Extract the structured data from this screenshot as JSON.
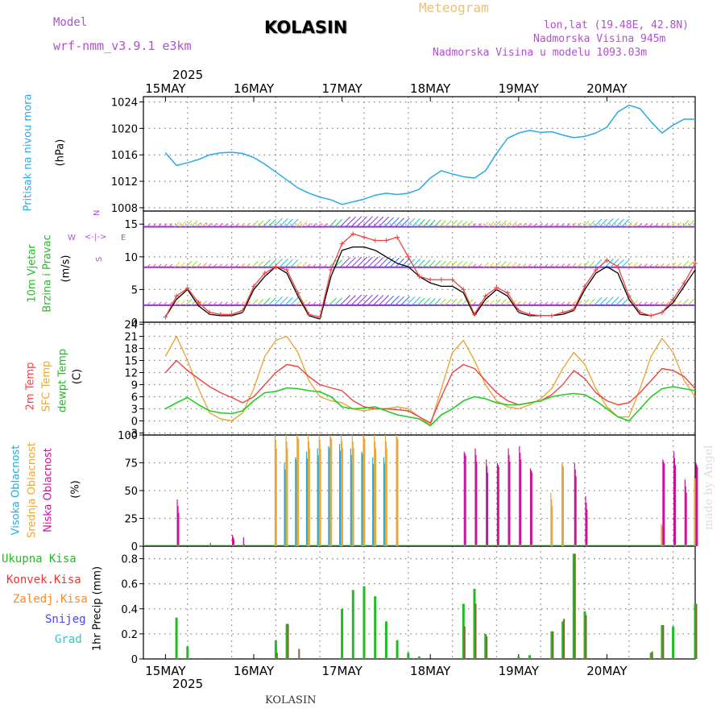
{
  "header": {
    "model_label": "Model",
    "model_name": "wrf-nmm_v3.9.1 e3km",
    "title": "KOLASIN",
    "meteogram": "Meteogram",
    "lonlat": "lon,lat (19.48E, 42.8N)",
    "elevation": "Nadmorska Visina 945m",
    "model_elevation": "Nadmorska Visina u modelu 1093.03m",
    "year": "2025",
    "footer_station": "KOLASIN",
    "watermark": "made by Angel"
  },
  "colors": {
    "pressure": "#2aa8e8",
    "temp2m": "#ee4444",
    "sfc": "#e8a838",
    "dewpt": "#22cc22",
    "high_cloud": "#22aadd",
    "mid_cloud": "#e8a838",
    "low_cloud": "#cc1199",
    "precip_total": "#22bb22",
    "precip_conv": "#ee3333",
    "freezing": "#ff8822",
    "snow": "#4444ff",
    "hail": "#22cccc",
    "grid": "#888888"
  },
  "chart_data": [
    {
      "type": "line",
      "title": "Pritisak na nivou mora",
      "ylabel": "(hPa)",
      "ylim": [
        1007.5,
        1024.8
      ],
      "yticks": [
        "1008",
        "1012",
        "1016",
        "1020",
        "1024"
      ],
      "x_hours": [
        0,
        3,
        6,
        9,
        12,
        15,
        18,
        21,
        24,
        27,
        30,
        33,
        36,
        39,
        42,
        45,
        48,
        51,
        54,
        57,
        60,
        63,
        66,
        69,
        72,
        75,
        78,
        81,
        84,
        87,
        90,
        93,
        96,
        99,
        102,
        105,
        108,
        111,
        114,
        117,
        120,
        123,
        126,
        129,
        132,
        135,
        138,
        141,
        144
      ],
      "series": [
        {
          "name": "Pritisak",
          "values": [
            1016.3,
            1014.4,
            1014.8,
            1015.3,
            1016.0,
            1016.3,
            1016.4,
            1016.2,
            1015.6,
            1014.6,
            1013.4,
            1012.2,
            1011.0,
            1010.2,
            1009.6,
            1009.2,
            1008.5,
            1008.9,
            1009.3,
            1009.9,
            1010.2,
            1010.0,
            1010.2,
            1010.8,
            1012.5,
            1013.6,
            1013.1,
            1012.7,
            1012.5,
            1013.6,
            1016.2,
            1018.5,
            1019.3,
            1019.7,
            1019.4,
            1019.5,
            1019.0,
            1018.6,
            1018.8,
            1019.3,
            1020.2,
            1022.5,
            1023.5,
            1023.0,
            1021.0,
            1019.3,
            1020.5,
            1021.4,
            1021.4
          ]
        }
      ]
    },
    {
      "type": "line",
      "title": "10m Vjetar Brzina i Pravac",
      "ylabel": "(m/s)",
      "ylim": [
        0,
        17
      ],
      "yticks": [
        "0",
        "5",
        "10",
        "15"
      ],
      "compass": [
        "N",
        "<",
        "-",
        "|",
        "-",
        ">",
        "E",
        "W",
        "S"
      ],
      "x_hours": [
        0,
        3,
        6,
        9,
        12,
        15,
        18,
        21,
        24,
        27,
        30,
        33,
        36,
        39,
        42,
        45,
        48,
        51,
        54,
        57,
        60,
        63,
        66,
        69,
        72,
        75,
        78,
        81,
        84,
        87,
        90,
        93,
        96,
        99,
        102,
        105,
        108,
        111,
        114,
        117,
        120,
        123,
        126,
        129,
        132,
        135,
        138,
        141,
        144
      ],
      "series": [
        {
          "name": "Brzina",
          "values": [
            0.8,
            3.5,
            5.0,
            2.5,
            1.2,
            1.0,
            1.0,
            1.5,
            5.0,
            7.0,
            8.5,
            7.5,
            4.0,
            1.0,
            0.5,
            7.0,
            11.0,
            11.5,
            11.5,
            11.0,
            10.0,
            9.0,
            8.5,
            7.0,
            6.0,
            5.5,
            5.5,
            4.5,
            1.0,
            3.5,
            5.0,
            4.0,
            1.5,
            1.0,
            1.0,
            1.0,
            1.2,
            1.8,
            5.0,
            7.5,
            8.5,
            7.5,
            3.5,
            1.2,
            1.0,
            1.5,
            3.0,
            5.5,
            8.0
          ]
        },
        {
          "name": "Udari",
          "values": [
            0.8,
            4.0,
            5.2,
            3.0,
            1.5,
            1.2,
            1.2,
            1.8,
            5.5,
            7.5,
            8.5,
            8.0,
            4.5,
            1.2,
            0.8,
            8.0,
            12.0,
            13.5,
            13.0,
            12.5,
            12.5,
            13.0,
            10.0,
            7.0,
            6.5,
            6.5,
            6.5,
            5.0,
            1.2,
            4.0,
            5.3,
            4.5,
            1.8,
            1.2,
            1.0,
            1.0,
            1.5,
            2.0,
            5.5,
            8.0,
            9.5,
            8.5,
            4.0,
            1.5,
            1.0,
            1.5,
            3.5,
            6.0,
            9.0
          ]
        }
      ]
    },
    {
      "type": "line",
      "title": "2m Temp / SFC Temp / dewpt Temp",
      "ylabel": "(C)",
      "ylim": [
        -3.5,
        24.5
      ],
      "yticks": [
        "-3",
        "0",
        "3",
        "6",
        "9",
        "12",
        "15",
        "18",
        "21",
        "24"
      ],
      "x_hours": [
        0,
        3,
        6,
        9,
        12,
        15,
        18,
        21,
        24,
        27,
        30,
        33,
        36,
        39,
        42,
        45,
        48,
        51,
        54,
        57,
        60,
        63,
        66,
        69,
        72,
        75,
        78,
        81,
        84,
        87,
        90,
        93,
        96,
        99,
        102,
        105,
        108,
        111,
        114,
        117,
        120,
        123,
        126,
        129,
        132,
        135,
        138,
        141,
        144
      ],
      "series": [
        {
          "name": "2m Temp",
          "values": [
            12.0,
            15.0,
            12.5,
            10.5,
            8.5,
            7.0,
            5.8,
            4.5,
            6.0,
            9.0,
            12.0,
            14.0,
            13.5,
            11.0,
            9.0,
            8.2,
            7.5,
            5.0,
            3.5,
            3.0,
            3.0,
            2.8,
            2.5,
            1.0,
            -0.5,
            6.0,
            12.0,
            14.0,
            13.0,
            10.0,
            7.0,
            5.0,
            4.0,
            4.5,
            5.0,
            6.5,
            9.0,
            12.5,
            10.5,
            7.0,
            5.0,
            4.0,
            4.5,
            7.0,
            10.0,
            13.0,
            12.5,
            11.0,
            8.0
          ]
        },
        {
          "name": "SFC Temp",
          "values": [
            16.0,
            21.0,
            15.0,
            8.0,
            2.0,
            0.5,
            0.0,
            2.0,
            8.0,
            16.0,
            20.0,
            21.0,
            17.0,
            10.0,
            6.0,
            5.0,
            4.5,
            3.0,
            2.5,
            3.0,
            3.0,
            3.5,
            3.0,
            1.0,
            -1.0,
            8.0,
            17.0,
            20.0,
            15.0,
            9.0,
            5.0,
            3.5,
            3.0,
            4.0,
            5.5,
            8.0,
            13.0,
            17.0,
            14.0,
            8.0,
            3.5,
            1.0,
            1.0,
            8.0,
            16.0,
            20.5,
            17.0,
            10.0,
            6.0
          ]
        },
        {
          "name": "dewpt Temp",
          "values": [
            3.0,
            4.5,
            5.8,
            4.0,
            2.5,
            2.0,
            1.8,
            2.5,
            5.0,
            7.0,
            7.3,
            8.2,
            8.0,
            7.5,
            7.2,
            6.0,
            3.5,
            3.0,
            3.2,
            3.5,
            2.5,
            1.5,
            1.0,
            0.5,
            -1.2,
            1.5,
            3.0,
            5.0,
            6.0,
            5.5,
            4.5,
            4.0,
            4.0,
            4.5,
            5.0,
            6.0,
            6.5,
            6.8,
            6.5,
            5.0,
            3.0,
            1.0,
            0.0,
            3.0,
            6.0,
            8.0,
            8.5,
            8.0,
            7.5
          ]
        }
      ]
    },
    {
      "type": "bar",
      "title": "Visoka Oblacnost / Srednja Oblacnost / Niska Oblacnost",
      "ylabel": "(%)",
      "ylim": [
        0,
        100
      ],
      "yticks": [
        "0",
        "25",
        "50",
        "75",
        "100"
      ],
      "x_hours": [
        0,
        3,
        6,
        9,
        12,
        15,
        18,
        21,
        24,
        27,
        30,
        33,
        36,
        39,
        42,
        45,
        48,
        51,
        54,
        57,
        60,
        63,
        66,
        69,
        72,
        75,
        78,
        81,
        84,
        87,
        90,
        93,
        96,
        99,
        102,
        105,
        108,
        111,
        114,
        117,
        120,
        123,
        126,
        129,
        132,
        135,
        138,
        141,
        144
      ],
      "series": [
        {
          "name": "Visoka Oblacnost",
          "values": [
            0,
            0,
            0,
            0,
            0,
            0,
            0,
            0,
            0,
            0,
            0,
            75,
            80,
            85,
            88,
            90,
            92,
            88,
            85,
            80,
            80,
            0,
            0,
            0,
            0,
            0,
            0,
            0,
            0,
            0,
            0,
            0,
            0,
            0,
            0,
            0,
            0,
            0,
            0,
            0,
            0,
            0,
            0,
            0,
            0,
            0,
            0,
            0,
            0
          ]
        },
        {
          "name": "Srednja Oblacnost",
          "values": [
            0,
            0,
            0,
            0,
            0,
            0,
            0,
            0,
            0,
            0,
            100,
            100,
            100,
            100,
            100,
            100,
            100,
            100,
            100,
            100,
            100,
            100,
            0,
            0,
            0,
            0,
            0,
            0,
            0,
            0,
            0,
            0,
            0,
            0,
            0,
            48,
            75,
            0,
            0,
            0,
            0,
            0,
            0,
            0,
            0,
            20,
            0,
            0,
            63
          ]
        },
        {
          "name": "Niska Oblacnost",
          "values": [
            0,
            42,
            0,
            0,
            3,
            0,
            10,
            8,
            0,
            0,
            0,
            0,
            0,
            0,
            0,
            0,
            0,
            0,
            0,
            0,
            0,
            0,
            0,
            0,
            0,
            0,
            0,
            85,
            88,
            78,
            75,
            88,
            90,
            70,
            0,
            0,
            0,
            75,
            45,
            0,
            0,
            0,
            0,
            0,
            0,
            78,
            85,
            60,
            75
          ]
        }
      ]
    },
    {
      "type": "bar",
      "title": "Ukupna Kisa / Konvek.Kisa / Zaledj.Kisa / Snijeg / Grad",
      "ylabel": "1hr Precip (mm)",
      "ylim": [
        0,
        0.9
      ],
      "yticks": [
        "0",
        "0.2",
        "0.4",
        "0.6",
        "0.8"
      ],
      "x_hours": [
        0,
        3,
        6,
        9,
        12,
        15,
        18,
        21,
        24,
        27,
        30,
        33,
        36,
        39,
        42,
        45,
        48,
        51,
        54,
        57,
        60,
        63,
        66,
        69,
        72,
        75,
        78,
        81,
        84,
        87,
        90,
        93,
        96,
        99,
        102,
        105,
        108,
        111,
        114,
        117,
        120,
        123,
        126,
        129,
        132,
        135,
        138,
        141,
        144
      ],
      "series": [
        {
          "name": "Ukupna Kisa",
          "values": [
            0,
            0.33,
            0.1,
            0,
            0,
            0,
            0,
            0,
            0,
            0,
            0.15,
            0.28,
            0,
            0,
            0,
            0,
            0.4,
            0.55,
            0.58,
            0.5,
            0.3,
            0.15,
            0.05,
            0.02,
            0,
            0,
            0,
            0.44,
            0.56,
            0.2,
            0,
            0,
            0.02,
            0.03,
            0,
            0.22,
            0.3,
            0.84,
            0.38,
            0,
            0,
            0,
            0,
            0,
            0.05,
            0.27,
            0.26,
            0,
            0.44
          ]
        },
        {
          "name": "Konvek.Kisa",
          "values": [
            0,
            0,
            0,
            0,
            0,
            0,
            0,
            0,
            0,
            0,
            0.05,
            0.28,
            0.08,
            0,
            0,
            0,
            0,
            0,
            0,
            0,
            0,
            0,
            0,
            0,
            0,
            0,
            0,
            0.26,
            0.44,
            0.18,
            0,
            0,
            0,
            0,
            0,
            0.22,
            0.32,
            0.84,
            0.35,
            0,
            0,
            0,
            0,
            0,
            0.06,
            0.27,
            0,
            0,
            0.44
          ]
        }
      ]
    }
  ],
  "axis": {
    "days_top": [
      "15MAY",
      "16MAY",
      "17MAY",
      "18MAY",
      "19MAY",
      "20MAY"
    ],
    "days_bottom": [
      "15MAY",
      "16MAY",
      "17MAY",
      "18MAY",
      "19MAY",
      "20MAY"
    ]
  },
  "labels": {
    "pressure_name": "Pritisak na nivou mora",
    "pressure_unit": "(hPa)",
    "wind_name1": "10m Vjetar",
    "wind_name2": "Brzina i Pravac",
    "wind_unit": "(m/s)",
    "temp2m": "2m Temp",
    "sfc": "SFC Temp",
    "dewpt1": "dewpt Temp",
    "temp_unit": "(C)",
    "cloud_high": "Visoka Oblacnost",
    "cloud_mid": "Srednja Oblacnost",
    "cloud_low": "Niska Oblacnost",
    "cloud_unit": "(%)",
    "precip_total": "Ukupna Kisa",
    "precip_conv": "Konvek.Kisa",
    "precip_freezing": "Zaledj.Kisa",
    "precip_snow": "Snijeg",
    "precip_hail": "Grad",
    "precip_unit": "1hr Precip (mm)"
  }
}
